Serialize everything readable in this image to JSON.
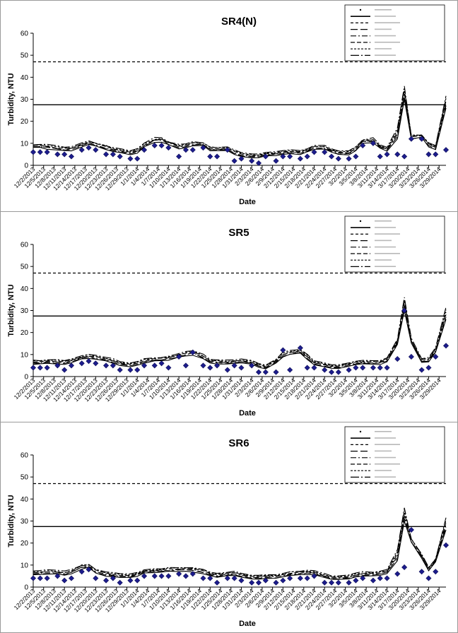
{
  "charts": {
    "x_tick_labels": [
      "12/2/2013",
      "12/5/2013",
      "12/8/2013",
      "12/11/2013",
      "12/14/2013",
      "12/17/2013",
      "12/20/2013",
      "12/23/2013",
      "12/26/2013",
      "12/29/2013",
      "1/1/2014",
      "1/4/2014",
      "1/7/2014",
      "1/10/2014",
      "1/13/2014",
      "1/16/2014",
      "1/19/2014",
      "1/22/2014",
      "1/25/2014",
      "1/28/2014",
      "1/31/2014",
      "2/3/2014",
      "2/6/2014",
      "2/9/2014",
      "2/12/2014",
      "2/15/2014",
      "2/18/2014",
      "2/21/2014",
      "2/24/2014",
      "2/27/2014",
      "3/2/2014",
      "3/5/2014",
      "3/8/2014",
      "3/11/2014",
      "3/14/2014",
      "3/17/2014",
      "3/20/2014",
      "3/23/2014",
      "3/26/2014",
      "3/29/2014"
    ],
    "y_ticks": [
      "0",
      "10",
      "20",
      "30",
      "40",
      "50",
      "60"
    ],
    "ylabel": "Turbidity, NTU",
    "xlabel": "Date",
    "colors": {
      "points": "#1c1c8c",
      "lines": "#000000"
    }
  },
  "chart_data": [
    {
      "type": "scatter",
      "title": "SR4(N)",
      "xlabel": "Date",
      "ylabel": "Turbidity, NTU",
      "ylim": [
        0,
        60
      ],
      "xlim": [
        "2013-12-02",
        "2014-03-31"
      ],
      "grid": false,
      "legend_placement": "top-right",
      "reference_lines": [
        27.5,
        47
      ],
      "observed": {
        "x": [
          "2013-12-02",
          "2013-12-04",
          "2013-12-06",
          "2013-12-09",
          "2013-12-11",
          "2013-12-13",
          "2013-12-16",
          "2013-12-18",
          "2013-12-20",
          "2013-12-23",
          "2013-12-25",
          "2013-12-27",
          "2013-12-30",
          "2014-01-01",
          "2014-01-03",
          "2014-01-06",
          "2014-01-08",
          "2014-01-10",
          "2014-01-13",
          "2014-01-15",
          "2014-01-17",
          "2014-01-20",
          "2014-01-22",
          "2014-01-24",
          "2014-01-27",
          "2014-01-29",
          "2014-01-31",
          "2014-02-03",
          "2014-02-05",
          "2014-02-07",
          "2014-02-10",
          "2014-02-12",
          "2014-02-14",
          "2014-02-17",
          "2014-02-19",
          "2014-02-21",
          "2014-02-24",
          "2014-02-26",
          "2014-02-28",
          "2014-03-03",
          "2014-03-05",
          "2014-03-07",
          "2014-03-10",
          "2014-03-12",
          "2014-03-14",
          "2014-03-17",
          "2014-03-19",
          "2014-03-21",
          "2014-03-24",
          "2014-03-26",
          "2014-03-28",
          "2014-03-31"
        ],
        "y": [
          6,
          6,
          6,
          5,
          5,
          4,
          7,
          8,
          7,
          5,
          5,
          4,
          3,
          3,
          7,
          9,
          9,
          8,
          4,
          7,
          7,
          8,
          4,
          4,
          7,
          2,
          3,
          2,
          1,
          4,
          2,
          4,
          4,
          3,
          4,
          6,
          6,
          4,
          3,
          3,
          4,
          9,
          10,
          4,
          5,
          5,
          4,
          12,
          12,
          5,
          5,
          7
        ]
      }
    },
    {
      "type": "scatter",
      "title": "SR5",
      "xlabel": "Date",
      "ylabel": "Turbidity, NTU",
      "ylim": [
        0,
        60
      ],
      "xlim": [
        "2013-12-02",
        "2014-03-31"
      ],
      "grid": false,
      "legend_placement": "top-right",
      "reference_lines": [
        27.5,
        47
      ],
      "observed": {
        "x": [
          "2013-12-02",
          "2013-12-04",
          "2013-12-06",
          "2013-12-09",
          "2013-12-11",
          "2013-12-13",
          "2013-12-16",
          "2013-12-18",
          "2013-12-20",
          "2013-12-23",
          "2013-12-25",
          "2013-12-27",
          "2013-12-30",
          "2014-01-01",
          "2014-01-03",
          "2014-01-06",
          "2014-01-08",
          "2014-01-10",
          "2014-01-13",
          "2014-01-15",
          "2014-01-17",
          "2014-01-20",
          "2014-01-22",
          "2014-01-24",
          "2014-01-27",
          "2014-01-29",
          "2014-01-31",
          "2014-02-03",
          "2014-02-05",
          "2014-02-07",
          "2014-02-10",
          "2014-02-12",
          "2014-02-14",
          "2014-02-17",
          "2014-02-19",
          "2014-02-21",
          "2014-02-24",
          "2014-02-26",
          "2014-02-28",
          "2014-03-03",
          "2014-03-05",
          "2014-03-07",
          "2014-03-10",
          "2014-03-12",
          "2014-03-14",
          "2014-03-17",
          "2014-03-19",
          "2014-03-21",
          "2014-03-24",
          "2014-03-26",
          "2014-03-28",
          "2014-03-31"
        ],
        "y": [
          4,
          4,
          4,
          5,
          3,
          5,
          6,
          7,
          6,
          5,
          5,
          3,
          3,
          3,
          5,
          5,
          6,
          4,
          9,
          5,
          11,
          5,
          4,
          5,
          3,
          5,
          4,
          5,
          2,
          2,
          2,
          12,
          3,
          13,
          4,
          4,
          3,
          2,
          2,
          3,
          4,
          4,
          4,
          4,
          4,
          8,
          30,
          9,
          3,
          4,
          9,
          14
        ]
      }
    },
    {
      "type": "scatter",
      "title": "SR6",
      "xlabel": "Date",
      "ylabel": "Turbidity, NTU",
      "ylim": [
        0,
        60
      ],
      "xlim": [
        "2013-12-02",
        "2014-03-31"
      ],
      "grid": false,
      "legend_placement": "top-right",
      "reference_lines": [
        27.5,
        47
      ],
      "observed": {
        "x": [
          "2013-12-02",
          "2013-12-04",
          "2013-12-06",
          "2013-12-09",
          "2013-12-11",
          "2013-12-13",
          "2013-12-16",
          "2013-12-18",
          "2013-12-20",
          "2013-12-23",
          "2013-12-25",
          "2013-12-27",
          "2013-12-30",
          "2014-01-01",
          "2014-01-03",
          "2014-01-06",
          "2014-01-08",
          "2014-01-10",
          "2014-01-13",
          "2014-01-15",
          "2014-01-17",
          "2014-01-20",
          "2014-01-22",
          "2014-01-24",
          "2014-01-27",
          "2014-01-29",
          "2014-01-31",
          "2014-02-03",
          "2014-02-05",
          "2014-02-07",
          "2014-02-10",
          "2014-02-12",
          "2014-02-14",
          "2014-02-17",
          "2014-02-19",
          "2014-02-21",
          "2014-02-24",
          "2014-02-26",
          "2014-02-28",
          "2014-03-03",
          "2014-03-05",
          "2014-03-07",
          "2014-03-10",
          "2014-03-12",
          "2014-03-14",
          "2014-03-17",
          "2014-03-19",
          "2014-03-21",
          "2014-03-24",
          "2014-03-26",
          "2014-03-28",
          "2014-03-31"
        ],
        "y": [
          4,
          4,
          4,
          5,
          3,
          4,
          7,
          8,
          4,
          3,
          4,
          2,
          3,
          3,
          5,
          5,
          5,
          5,
          6,
          5,
          6,
          4,
          4,
          2,
          4,
          4,
          3,
          2,
          2,
          3,
          2,
          3,
          4,
          4,
          4,
          5,
          2,
          2,
          2,
          2,
          3,
          4,
          3,
          4,
          4,
          6,
          9,
          26,
          7,
          4,
          7,
          19
        ]
      }
    }
  ]
}
